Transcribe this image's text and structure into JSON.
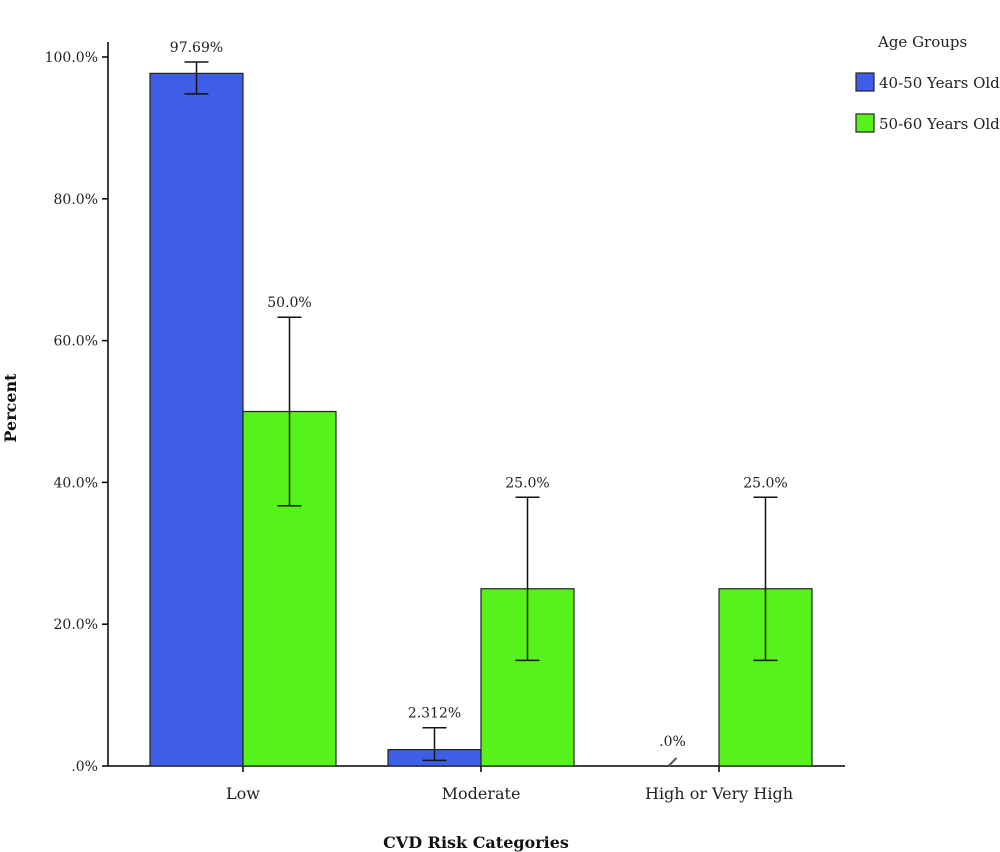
{
  "chart_data": {
    "type": "bar",
    "xlabel": "CVD Risk Categories",
    "ylabel": "Percent",
    "ylim": [
      0,
      100
    ],
    "yticks": [
      0,
      20,
      40,
      60,
      80,
      100
    ],
    "ytick_labels": [
      ".0%",
      "20.0%",
      "40.0%",
      "60.0%",
      "80.0%",
      "100.0%"
    ],
    "categories": [
      "Low",
      "Moderate",
      "High or Very High"
    ],
    "legend_title": "Age Groups",
    "legend_position": "top-right",
    "grid": false,
    "series": [
      {
        "name": "40-50 Years Old",
        "color": "#3f5ee8",
        "values": [
          97.69,
          2.312,
          0
        ],
        "value_labels": [
          "97.69%",
          "2.312%",
          ".0%"
        ],
        "error_low": [
          94.8,
          0.8,
          null
        ],
        "error_high": [
          99.3,
          5.4,
          null
        ]
      },
      {
        "name": "50-60 Years Old",
        "color": "#56f21a",
        "values": [
          50.0,
          25.0,
          25.0
        ],
        "value_labels": [
          "50.0%",
          "25.0%",
          "25.0%"
        ],
        "error_low": [
          36.7,
          14.9,
          14.9
        ],
        "error_high": [
          63.3,
          37.9,
          37.9
        ]
      }
    ]
  }
}
